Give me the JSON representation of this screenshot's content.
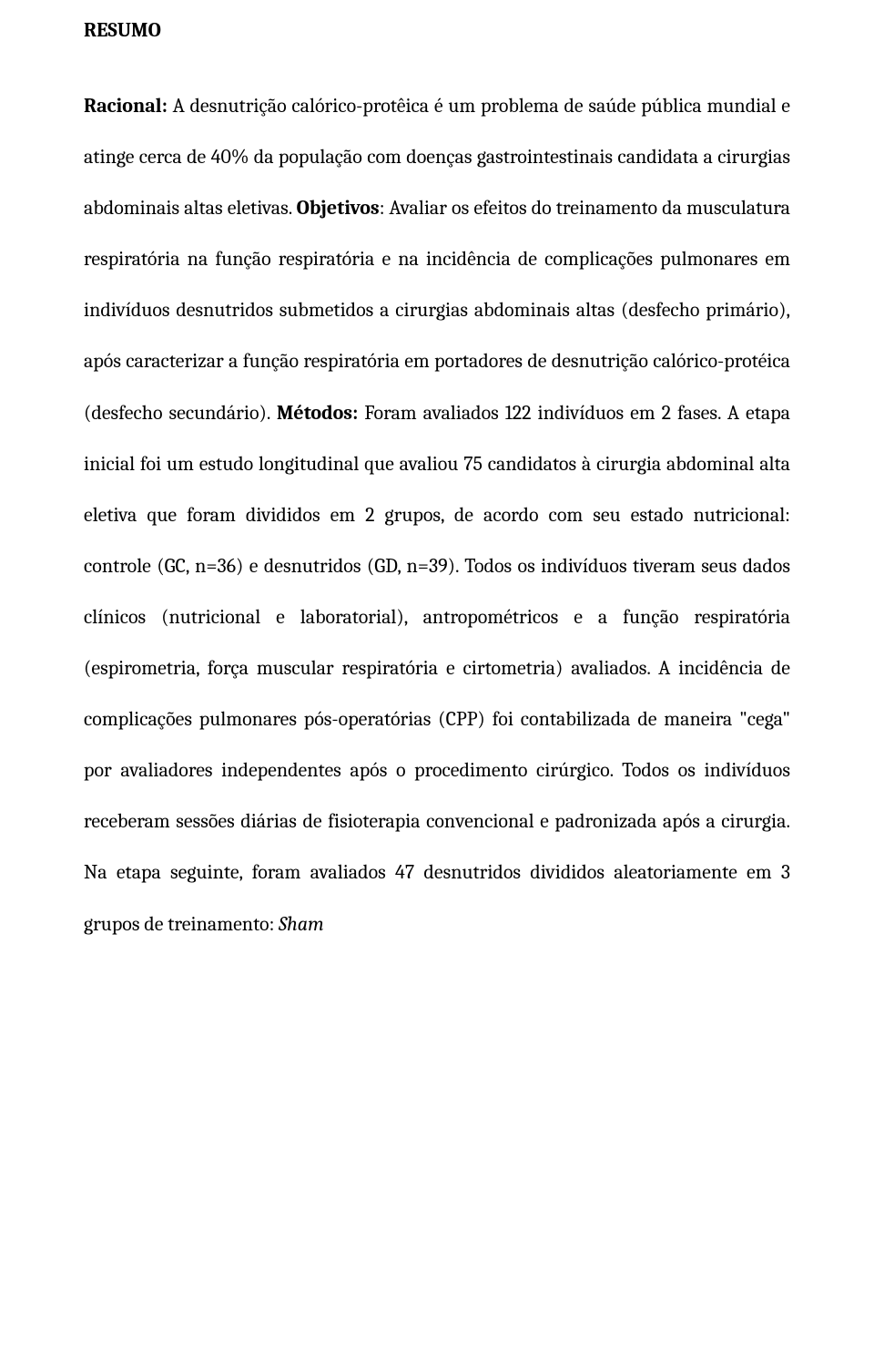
{
  "document": {
    "font_family": "Cambria",
    "font_size_pt": 22,
    "text_color": "#000000",
    "background_color": "#ffffff",
    "line_height": 2.55,
    "text_align": "justify",
    "heading": "RESUMO",
    "body_runs": [
      {
        "text": "Racional:",
        "bold": true
      },
      {
        "text": " A desnutrição calórico-protêica é um problema de saúde pública mundial e atinge cerca de 40% da população com doenças gastrointestinais candidata a cirurgias abdominais altas eletivas. "
      },
      {
        "text": "Objetivos",
        "bold": true
      },
      {
        "text": ": Avaliar os efeitos do treinamento da musculatura respiratória na função respiratória e na incidência de complicações pulmonares em indivíduos desnutridos submetidos a cirurgias abdominais altas (desfecho primário), após caracterizar a função respiratória em portadores de desnutrição calórico-protéica (desfecho secundário). "
      },
      {
        "text": "Métodos:",
        "bold": true
      },
      {
        "text": " Foram avaliados 122 indivíduos em 2 fases. A etapa inicial foi um estudo longitudinal que avaliou 75 candidatos à cirurgia abdominal alta eletiva que foram divididos em 2 grupos, de acordo com seu estado nutricional: controle (GC, n=36) e desnutridos (GD, n=39). Todos os indivíduos tiveram seus dados clínicos (nutricional e laboratorial), antropométricos e a função respiratória (espirometria, força muscular respiratória e cirtometria) avaliados. A incidência de complicações pulmonares pós-operatórias (CPP) foi contabilizada de maneira \"cega\" por avaliadores independentes após o procedimento cirúrgico. Todos os indivíduos receberam sessões diárias de fisioterapia convencional e padronizada após a cirurgia. Na etapa seguinte, foram avaliados 47 desnutridos divididos aleatoriamente em 3 grupos de treinamento: "
      },
      {
        "text": "Sham",
        "italic": true
      }
    ]
  }
}
